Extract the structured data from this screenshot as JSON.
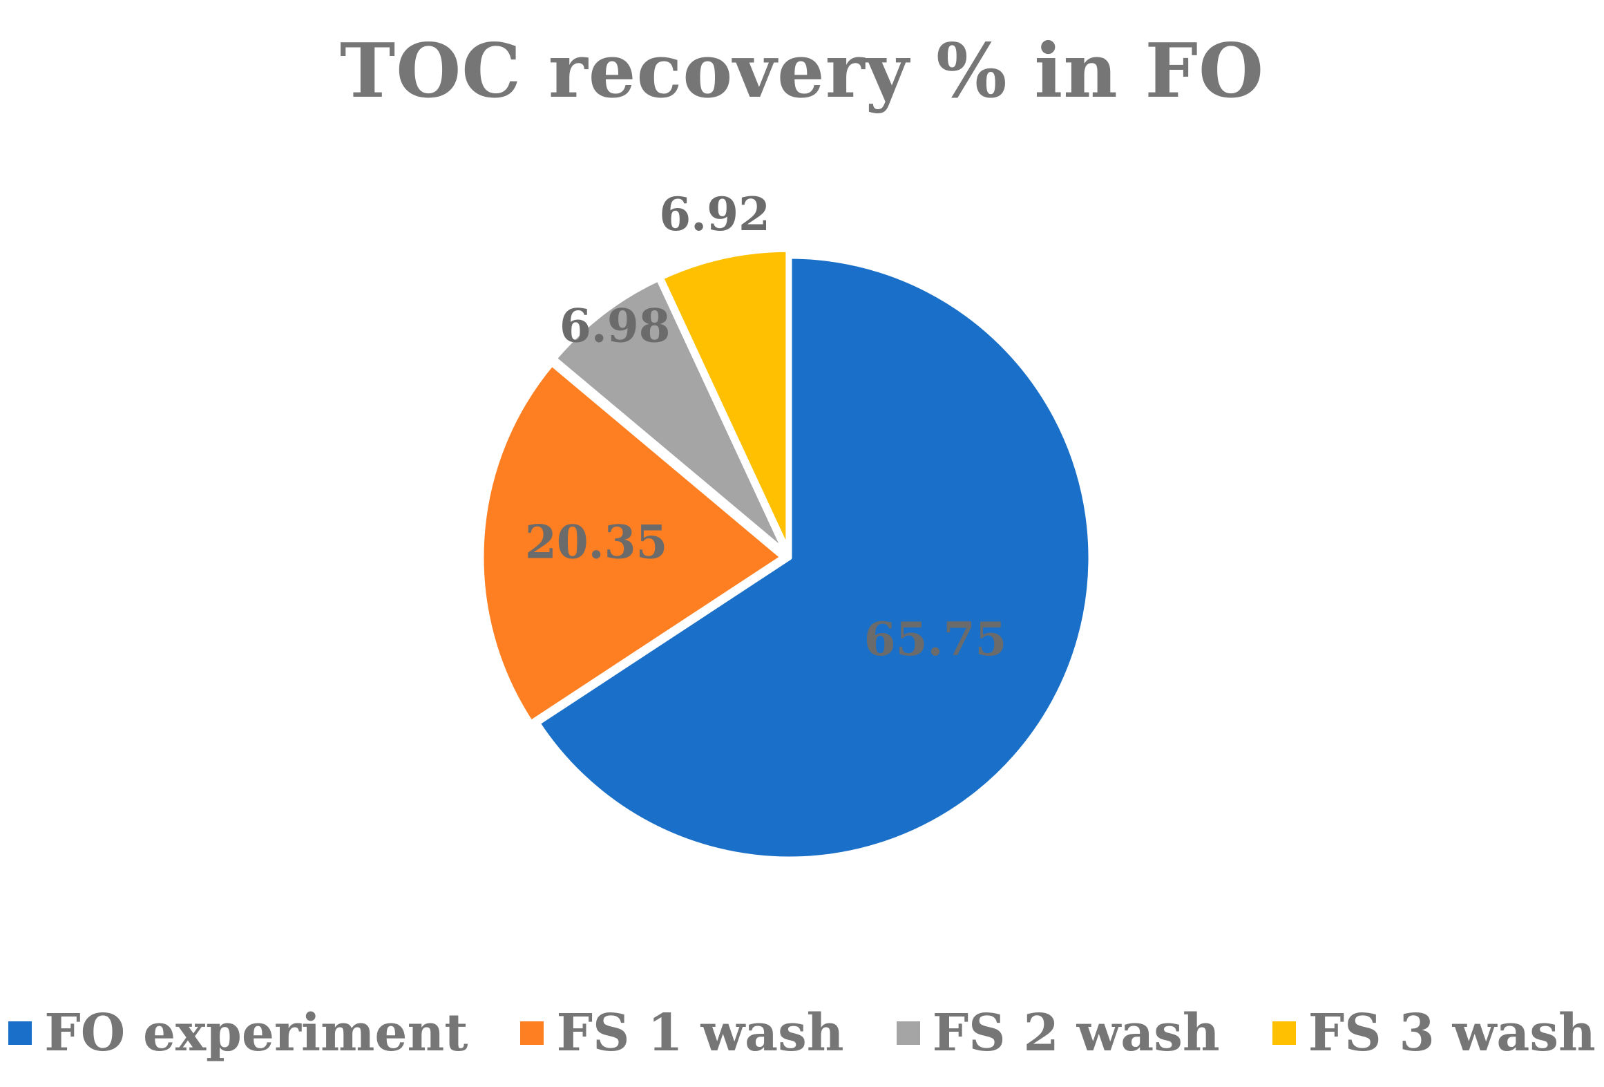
{
  "chart_data": {
    "type": "pie",
    "title": "TOC recovery % in FO",
    "categories": [
      "FO experiment",
      "FS 1 wash",
      "FS 2 wash",
      "FS 3 wash"
    ],
    "values": [
      65.75,
      20.35,
      6.98,
      6.92
    ],
    "value_labels": [
      "65.75",
      "20.35",
      "6.98",
      "6.92"
    ],
    "colors": [
      "#1a70c8",
      "#fd7f22",
      "#a5a5a5",
      "#fec000"
    ],
    "legend_position": "bottom",
    "exploded": true
  }
}
